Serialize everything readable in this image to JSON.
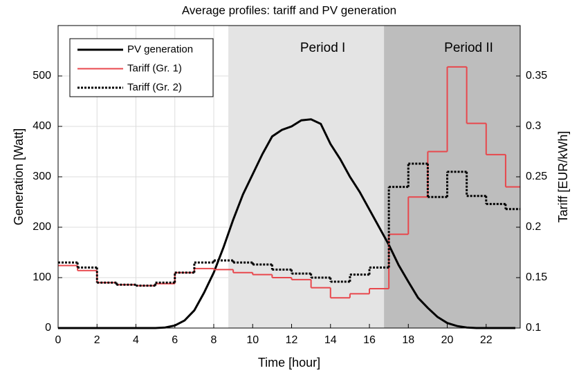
{
  "chart_data": {
    "type": "line",
    "title": "Average profiles: tariff and PV generation",
    "x_label": "Time [hour]",
    "y_label": "Generation [Watt]",
    "y2_label": "Tariff [EUR/kWh]",
    "xlim": [
      0,
      23.75
    ],
    "xticks": [
      0,
      2,
      4,
      6,
      8,
      10,
      12,
      14,
      16,
      18,
      20,
      22
    ],
    "ylim": [
      0,
      600
    ],
    "yticks": [
      0,
      100,
      200,
      300,
      400,
      500
    ],
    "y2lim": [
      0.1,
      0.4
    ],
    "y2ticks": [
      0.1,
      0.15,
      0.2,
      0.25,
      0.3,
      0.35
    ],
    "grid": true,
    "legend": "upper left",
    "regions": [
      {
        "label": "Period I",
        "start": 8.75,
        "end": 16.75,
        "color": "#e4e4e4"
      },
      {
        "label": "Period II",
        "start": 16.75,
        "end": 23.75,
        "color": "#bdbdbd"
      }
    ],
    "series": [
      {
        "name": "PV generation",
        "color": "#000000",
        "style": "solid",
        "width": 3,
        "x": [
          0,
          0.5,
          1,
          1.5,
          2,
          2.5,
          3,
          3.5,
          4,
          4.5,
          5,
          5.5,
          6,
          6.5,
          7,
          7.5,
          8,
          8.5,
          9,
          9.5,
          10,
          10.5,
          11,
          11.5,
          12,
          12.5,
          13,
          13.5,
          14,
          14.5,
          15,
          15.5,
          16,
          16.5,
          17,
          17.5,
          18,
          18.5,
          19,
          19.5,
          20,
          20.5,
          21,
          21.5,
          22,
          22.5,
          23,
          23.5
        ],
        "values": [
          0,
          0,
          0,
          0,
          0,
          0,
          0,
          0,
          0,
          0,
          0,
          1,
          5,
          15,
          35,
          70,
          110,
          160,
          215,
          265,
          305,
          345,
          380,
          393,
          400,
          412,
          414,
          405,
          365,
          335,
          300,
          270,
          235,
          200,
          165,
          125,
          92,
          60,
          40,
          22,
          10,
          4,
          1,
          0,
          0,
          0,
          0,
          0
        ]
      },
      {
        "name": "Tariff (Gr. 1)",
        "color": "#e8474c",
        "style": "solid",
        "width": 2,
        "axis": "y2",
        "step": true,
        "x": [
          0,
          1,
          2,
          3,
          4,
          5,
          6,
          7,
          8,
          9,
          10,
          11,
          12,
          13,
          14,
          15,
          16,
          17,
          18,
          19,
          20,
          21,
          22,
          23
        ],
        "values": [
          0.162,
          0.157,
          0.145,
          0.143,
          0.142,
          0.144,
          0.155,
          0.159,
          0.158,
          0.155,
          0.153,
          0.15,
          0.148,
          0.14,
          0.13,
          0.134,
          0.139,
          0.193,
          0.23,
          0.275,
          0.359,
          0.303,
          0.272,
          0.24
        ]
      },
      {
        "name": "Tariff (Gr. 2)",
        "color": "#000000",
        "style": "dotted",
        "width": 3,
        "axis": "y2",
        "step": true,
        "x": [
          0,
          1,
          2,
          3,
          4,
          5,
          6,
          7,
          8,
          9,
          10,
          11,
          12,
          13,
          14,
          15,
          16,
          17,
          18,
          19,
          20,
          21,
          22,
          23
        ],
        "values": [
          0.165,
          0.16,
          0.145,
          0.143,
          0.142,
          0.145,
          0.155,
          0.165,
          0.167,
          0.165,
          0.163,
          0.158,
          0.154,
          0.15,
          0.146,
          0.153,
          0.16,
          0.24,
          0.263,
          0.23,
          0.255,
          0.231,
          0.223,
          0.218
        ]
      }
    ]
  }
}
